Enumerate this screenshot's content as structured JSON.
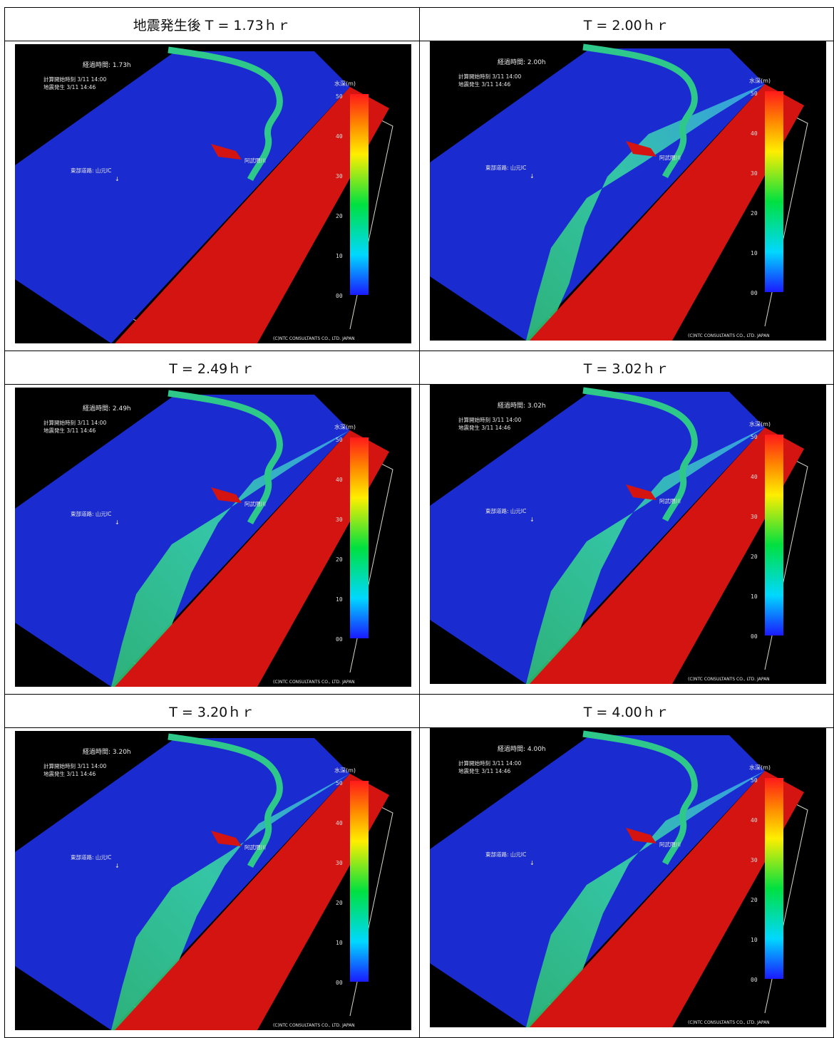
{
  "table": {
    "headers": [
      "地震発生後 T = 1.73ｈｒ",
      "T = 2.00ｈｒ",
      "T = 2.49ｈｒ",
      "T = 3.02ｈｒ",
      "T = 3.20ｈｒ",
      "T = 4.00ｈｒ"
    ]
  },
  "panels": [
    {
      "elapsed": "経過時間: 1.73h",
      "inundation": 0.05
    },
    {
      "elapsed": "経過時間: 2.00h",
      "inundation": 0.55
    },
    {
      "elapsed": "経過時間: 2.49h",
      "inundation": 0.75
    },
    {
      "elapsed": "経過時間: 3.02h",
      "inundation": 0.7
    },
    {
      "elapsed": "経過時間: 3.20h",
      "inundation": 0.8
    },
    {
      "elapsed": "経過時間: 4.00h",
      "inundation": 0.72
    }
  ],
  "overlay": {
    "calc_start": "計算開始時刻 3/11 14:00",
    "quake": "地震発生 3/11 14:46",
    "road": "東部道路: 山元IC",
    "river": "阿武隈川",
    "depth_label": "水深(m)",
    "copyright": "(C)NTC CONSULTANTS CO., LTD. JAPAN",
    "scale_ticks": [
      "00",
      "10",
      "20",
      "30",
      "40",
      "50"
    ]
  },
  "colors": {
    "sea": "#d41410",
    "land": "#1a2bd0",
    "background": "#000000"
  }
}
